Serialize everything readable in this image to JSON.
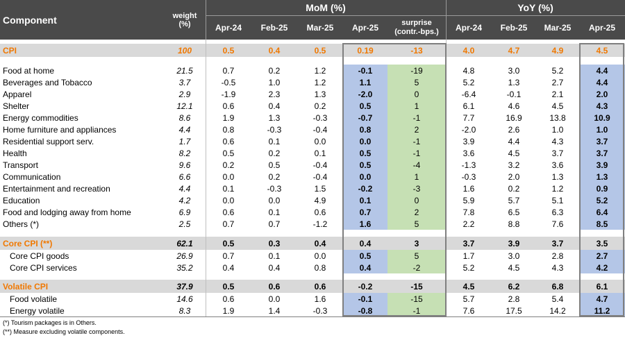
{
  "header": {
    "component": "Component",
    "weight_line1": "weight",
    "weight_line2": "(%)",
    "mom_group": "MoM (%)",
    "yoy_group": "YoY (%)",
    "mom_cols": [
      "Apr-24",
      "Feb-25",
      "Mar-25",
      "Apr-25"
    ],
    "surprise_line1": "surprise",
    "surprise_line2": "(contr.-bps.)",
    "yoy_cols": [
      "Apr-24",
      "Feb-25",
      "Mar-25",
      "Apr-25"
    ]
  },
  "rows": [
    {
      "name": "CPI",
      "weight": "100",
      "m1": "0.5",
      "m2": "0.4",
      "m3": "0.5",
      "m4": "0.19",
      "sur": "-13",
      "y1": "4.0",
      "y2": "4.7",
      "y3": "4.9",
      "y4": "4.5"
    },
    {
      "name": "Food at home",
      "weight": "21.5",
      "m1": "0.7",
      "m2": "0.2",
      "m3": "1.2",
      "m4": "-0.1",
      "sur": "-19",
      "y1": "4.8",
      "y2": "3.0",
      "y3": "5.2",
      "y4": "4.4"
    },
    {
      "name": "Beverages and Tobacco",
      "weight": "3.7",
      "m1": "-0.5",
      "m2": "1.0",
      "m3": "1.2",
      "m4": "1.1",
      "sur": "5",
      "y1": "5.2",
      "y2": "1.3",
      "y3": "2.7",
      "y4": "4.4"
    },
    {
      "name": "Apparel",
      "weight": "2.9",
      "m1": "-1.9",
      "m2": "2.3",
      "m3": "1.3",
      "m4": "-2.0",
      "sur": "0",
      "y1": "-6.4",
      "y2": "-0.1",
      "y3": "2.1",
      "y4": "2.0"
    },
    {
      "name": "Shelter",
      "weight": "12.1",
      "m1": "0.6",
      "m2": "0.4",
      "m3": "0.2",
      "m4": "0.5",
      "sur": "1",
      "y1": "6.1",
      "y2": "4.6",
      "y3": "4.5",
      "y4": "4.3"
    },
    {
      "name": "Energy commodities",
      "weight": "8.6",
      "m1": "1.9",
      "m2": "1.3",
      "m3": "-0.3",
      "m4": "-0.7",
      "sur": "-1",
      "y1": "7.7",
      "y2": "16.9",
      "y3": "13.8",
      "y4": "10.9"
    },
    {
      "name": "Home furniture and appliances",
      "weight": "4.4",
      "m1": "0.8",
      "m2": "-0.3",
      "m3": "-0.4",
      "m4": "0.8",
      "sur": "2",
      "y1": "-2.0",
      "y2": "2.6",
      "y3": "1.0",
      "y4": "1.0"
    },
    {
      "name": "Residential support serv.",
      "weight": "1.7",
      "m1": "0.6",
      "m2": "0.1",
      "m3": "0.0",
      "m4": "0.0",
      "sur": "-1",
      "y1": "3.9",
      "y2": "4.4",
      "y3": "4.3",
      "y4": "3.7"
    },
    {
      "name": "Health",
      "weight": "8.2",
      "m1": "0.5",
      "m2": "0.2",
      "m3": "0.1",
      "m4": "0.5",
      "sur": "-1",
      "y1": "3.6",
      "y2": "4.5",
      "y3": "3.7",
      "y4": "3.7"
    },
    {
      "name": "Transport",
      "weight": "9.6",
      "m1": "0.2",
      "m2": "0.5",
      "m3": "-0.4",
      "m4": "0.5",
      "sur": "-4",
      "y1": "-1.3",
      "y2": "3.2",
      "y3": "3.6",
      "y4": "3.9"
    },
    {
      "name": "Communication",
      "weight": "6.6",
      "m1": "0.0",
      "m2": "0.2",
      "m3": "-0.4",
      "m4": "0.0",
      "sur": "1",
      "y1": "-0.3",
      "y2": "2.0",
      "y3": "1.3",
      "y4": "1.3"
    },
    {
      "name": "Entertainment and recreation",
      "weight": "4.4",
      "m1": "0.1",
      "m2": "-0.3",
      "m3": "1.5",
      "m4": "-0.2",
      "sur": "-3",
      "y1": "1.6",
      "y2": "0.2",
      "y3": "1.2",
      "y4": "0.9"
    },
    {
      "name": "Education",
      "weight": "4.2",
      "m1": "0.0",
      "m2": "0.0",
      "m3": "4.9",
      "m4": "0.1",
      "sur": "0",
      "y1": "5.9",
      "y2": "5.7",
      "y3": "5.1",
      "y4": "5.2"
    },
    {
      "name": "Food and lodging away from home",
      "weight": "6.9",
      "m1": "0.6",
      "m2": "0.1",
      "m3": "0.6",
      "m4": "0.7",
      "sur": "2",
      "y1": "7.8",
      "y2": "6.5",
      "y3": "6.3",
      "y4": "6.4"
    },
    {
      "name": "Others (*)",
      "weight": "2.5",
      "m1": "0.7",
      "m2": "0.7",
      "m3": "-1.2",
      "m4": "1.6",
      "sur": "5",
      "y1": "2.2",
      "y2": "8.8",
      "y3": "7.6",
      "y4": "8.5"
    },
    {
      "name": "Core CPI (**)",
      "weight": "62.1",
      "m1": "0.5",
      "m2": "0.3",
      "m3": "0.4",
      "m4": "0.4",
      "sur": "3",
      "y1": "3.7",
      "y2": "3.9",
      "y3": "3.7",
      "y4": "3.5"
    },
    {
      "name": "Core CPI goods",
      "weight": "26.9",
      "m1": "0.7",
      "m2": "0.1",
      "m3": "0.0",
      "m4": "0.5",
      "sur": "5",
      "y1": "1.7",
      "y2": "3.0",
      "y3": "2.8",
      "y4": "2.7"
    },
    {
      "name": "Core CPI services",
      "weight": "35.2",
      "m1": "0.4",
      "m2": "0.4",
      "m3": "0.8",
      "m4": "0.4",
      "sur": "-2",
      "y1": "5.2",
      "y2": "4.5",
      "y3": "4.3",
      "y4": "4.2"
    },
    {
      "name": "Volatile CPI",
      "weight": "37.9",
      "m1": "0.5",
      "m2": "0.6",
      "m3": "0.6",
      "m4": "-0.2",
      "sur": "-15",
      "y1": "4.5",
      "y2": "6.2",
      "y3": "6.8",
      "y4": "6.1"
    },
    {
      "name": "Food volatile",
      "weight": "14.6",
      "m1": "0.6",
      "m2": "0.0",
      "m3": "1.6",
      "m4": "-0.1",
      "sur": "-15",
      "y1": "5.7",
      "y2": "2.8",
      "y3": "5.4",
      "y4": "4.7"
    },
    {
      "name": "Energy volatile",
      "weight": "8.3",
      "m1": "1.9",
      "m2": "1.4",
      "m3": "-0.3",
      "m4": "-0.8",
      "sur": "-1",
      "y1": "7.6",
      "y2": "17.5",
      "y3": "14.2",
      "y4": "11.2"
    }
  ],
  "notes": {
    "note1": "(*) Tourism packages is in Others.",
    "note2": "(**) Measure excluding volatile components."
  },
  "colors": {
    "header_bg": "#4a4a4a",
    "highlight_orange": "#f07800",
    "mom_apr25_blue": "#b4c6e7",
    "surprise_green": "#c6e0b4",
    "section_gray": "#d9d9d9"
  }
}
